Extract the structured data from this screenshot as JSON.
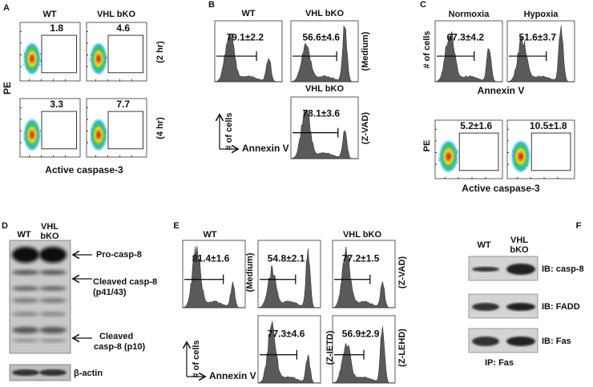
{
  "panels": {
    "A": {
      "letter": "A",
      "columns": [
        "WT",
        "VHL bKO"
      ],
      "conditions": [
        "(2 hr)",
        "(4 hr)"
      ],
      "gates": [
        [
          "1.8",
          "4.6"
        ],
        [
          "3.3",
          "7.7"
        ]
      ],
      "y_label": "PE",
      "x_label": "Active caspase-3"
    },
    "B": {
      "letter": "B",
      "columns": [
        "WT",
        "VHL bKO"
      ],
      "condition": "(Medium)",
      "percent": [
        "79.1±2.2",
        "56.6±4.6"
      ],
      "lower_title": "VHL bKO",
      "lower_condition": "(Z-VAD)",
      "lower_percent": "78.1±3.6",
      "y_label": "# of cells",
      "x_label": "Annexin V"
    },
    "C": {
      "letter": "C",
      "columns": [
        "Normoxia",
        "Hypoxia"
      ],
      "percent": [
        "67.3±4.2",
        "51.6±3.7"
      ],
      "y_label": "# of cells",
      "x_label": "Annexin V",
      "gates": [
        "5.2±1.6",
        "10.5±1.8"
      ],
      "lower_y_label": "PE",
      "lower_x_label": "Active caspase-3"
    },
    "D": {
      "letter": "D",
      "columns": [
        [
          "WT"
        ],
        [
          "VHL",
          "bKO"
        ]
      ],
      "bands": [
        [
          "Pro-casp-8"
        ],
        [
          "Cleaved casp-8",
          "(p41/43)"
        ],
        [
          "Cleaved",
          "casp-8 (p10)"
        ]
      ],
      "loading": "β-actin"
    },
    "E": {
      "letter": "E",
      "groups": [
        "WT",
        "VHL bKO"
      ],
      "plots": [
        {
          "condition": null,
          "percent": "81.4±1.6"
        },
        {
          "condition": "(Medium)",
          "percent": "54.8±2.1"
        },
        {
          "condition": "(Z-VAD)",
          "percent": "77.2±1.5"
        },
        {
          "condition": "(Z-IETD)",
          "percent": "77.3±4.6"
        },
        {
          "condition": "(Z-LEHD)",
          "percent": "56.9±2.9"
        }
      ],
      "y_label": "# of cells",
      "x_label": "Annexin V"
    },
    "F": {
      "letter": "F",
      "columns": [
        [
          "WT"
        ],
        [
          "VHL",
          "bKO"
        ]
      ],
      "blots": [
        "IB: casp-8",
        "IB: FADD",
        "IB: Fas"
      ],
      "footer": "IP: Fas"
    }
  }
}
